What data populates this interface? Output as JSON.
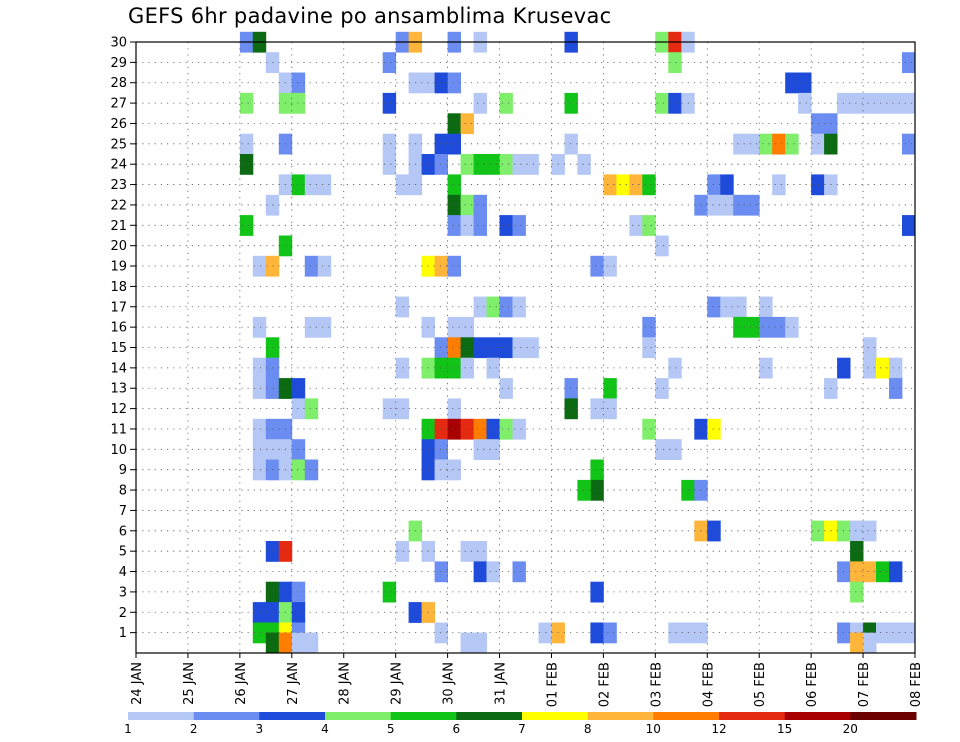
{
  "chart_data": {
    "type": "heatmap",
    "title": "GEFS 6hr padavine po ansamblima Krusevac",
    "xlabel": "",
    "ylabel": "",
    "x_tick_labels": [
      "24 JAN",
      "25 JAN",
      "26 JAN",
      "27 JAN",
      "28 JAN",
      "29 JAN",
      "30 JAN",
      "31 JAN",
      "01 FEB",
      "02 FEB",
      "03 FEB",
      "04 FEB",
      "05 FEB",
      "06 FEB",
      "07 FEB",
      "08 FEB"
    ],
    "xlim": [
      0,
      60
    ],
    "x_unit": "6-hour steps from 24 JAN 00Z",
    "y_tick_labels": [
      "1",
      "2",
      "3",
      "4",
      "5",
      "6",
      "7",
      "8",
      "9",
      "10",
      "11",
      "12",
      "13",
      "14",
      "15",
      "16",
      "17",
      "18",
      "19",
      "20",
      "21",
      "22",
      "23",
      "24",
      "25",
      "26",
      "27",
      "28",
      "29",
      "30"
    ],
    "ylim": [
      0,
      30
    ],
    "grid": true,
    "legend_labels": [
      "1",
      "2",
      "3",
      "4",
      "5",
      "6",
      "7",
      "8",
      "10",
      "12",
      "15",
      "20"
    ],
    "legend_colors": [
      "#b4c7f5",
      "#6b8cf0",
      "#1e4bd9",
      "#7fee6a",
      "#12c318",
      "#0b6a12",
      "#ffff00",
      "#ffb43a",
      "#ff7d00",
      "#e42a10",
      "#a80000",
      "#6b0000"
    ],
    "cells": [
      [
        30,
        8.5,
        1
      ],
      [
        30,
        9.5,
        5
      ],
      [
        30,
        20.5,
        1
      ],
      [
        30,
        21.5,
        7
      ],
      [
        30,
        24.5,
        1
      ],
      [
        30,
        26.5,
        0
      ],
      [
        30,
        33.5,
        2
      ],
      [
        30,
        40.5,
        3
      ],
      [
        30,
        41.5,
        9
      ],
      [
        30,
        42.5,
        0
      ],
      [
        29,
        10.5,
        0
      ],
      [
        29,
        19.5,
        1
      ],
      [
        29,
        41.5,
        3
      ],
      [
        29,
        59.5,
        1
      ],
      [
        28,
        11.5,
        0
      ],
      [
        28,
        12.5,
        1
      ],
      [
        28,
        21.5,
        0
      ],
      [
        28,
        22.5,
        0
      ],
      [
        28,
        23.5,
        2
      ],
      [
        28,
        24.5,
        1
      ],
      [
        28,
        50.5,
        2
      ],
      [
        28,
        51.5,
        2
      ],
      [
        27,
        8.5,
        3
      ],
      [
        27,
        11.5,
        3
      ],
      [
        27,
        12.5,
        3
      ],
      [
        27,
        19.5,
        2
      ],
      [
        27,
        26.5,
        0
      ],
      [
        27,
        28.5,
        3
      ],
      [
        27,
        33.5,
        4
      ],
      [
        27,
        40.5,
        3
      ],
      [
        27,
        41.5,
        2
      ],
      [
        27,
        42.5,
        0
      ],
      [
        27,
        51.5,
        0
      ],
      [
        27,
        54.5,
        0
      ],
      [
        27,
        55.5,
        0
      ],
      [
        27,
        56.5,
        0
      ],
      [
        27,
        57.5,
        0
      ],
      [
        27,
        58.5,
        0
      ],
      [
        27,
        59.5,
        0
      ],
      [
        26,
        24.5,
        5
      ],
      [
        26,
        25.5,
        7
      ],
      [
        26,
        52.5,
        1
      ],
      [
        26,
        53.5,
        1
      ],
      [
        25,
        8.5,
        0
      ],
      [
        25,
        11.5,
        1
      ],
      [
        25,
        19.5,
        0
      ],
      [
        25,
        21.5,
        0
      ],
      [
        25,
        23.5,
        2
      ],
      [
        25,
        24.5,
        2
      ],
      [
        25,
        33.5,
        0
      ],
      [
        25,
        46.5,
        0
      ],
      [
        25,
        47.5,
        0
      ],
      [
        25,
        48.5,
        3
      ],
      [
        25,
        49.5,
        8
      ],
      [
        25,
        50.5,
        3
      ],
      [
        25,
        52.5,
        0
      ],
      [
        25,
        53.5,
        5
      ],
      [
        25,
        59.5,
        1
      ],
      [
        24,
        8.5,
        5
      ],
      [
        24,
        19.5,
        0
      ],
      [
        24,
        21.5,
        0
      ],
      [
        24,
        22.5,
        2
      ],
      [
        24,
        23.5,
        1
      ],
      [
        24,
        25.5,
        3
      ],
      [
        24,
        26.5,
        4
      ],
      [
        24,
        27.5,
        4
      ],
      [
        24,
        28.5,
        3
      ],
      [
        24,
        29.5,
        0
      ],
      [
        24,
        30.5,
        0
      ],
      [
        24,
        32.5,
        0
      ],
      [
        24,
        34.5,
        0
      ],
      [
        23,
        11.5,
        0
      ],
      [
        23,
        12.5,
        4
      ],
      [
        23,
        13.5,
        0
      ],
      [
        23,
        14.5,
        0
      ],
      [
        23,
        20.5,
        0
      ],
      [
        23,
        21.5,
        0
      ],
      [
        23,
        24.5,
        4
      ],
      [
        23,
        36.5,
        7
      ],
      [
        23,
        37.5,
        6
      ],
      [
        23,
        38.5,
        7
      ],
      [
        23,
        39.5,
        4
      ],
      [
        23,
        44.5,
        1
      ],
      [
        23,
        45.5,
        2
      ],
      [
        23,
        49.5,
        0
      ],
      [
        23,
        52.5,
        2
      ],
      [
        23,
        53.5,
        0
      ],
      [
        22,
        10.5,
        0
      ],
      [
        22,
        24.5,
        5
      ],
      [
        22,
        25.5,
        3
      ],
      [
        22,
        26.5,
        1
      ],
      [
        22,
        43.5,
        1
      ],
      [
        22,
        44.5,
        0
      ],
      [
        22,
        45.5,
        0
      ],
      [
        22,
        46.5,
        1
      ],
      [
        22,
        47.5,
        1
      ],
      [
        21,
        8.5,
        4
      ],
      [
        21,
        24.5,
        1
      ],
      [
        21,
        25.5,
        0
      ],
      [
        21,
        26.5,
        1
      ],
      [
        21,
        28.5,
        2
      ],
      [
        21,
        29.5,
        1
      ],
      [
        21,
        38.5,
        0
      ],
      [
        21,
        39.5,
        3
      ],
      [
        21,
        59.5,
        2
      ],
      [
        20,
        11.5,
        4
      ],
      [
        20,
        40.5,
        0
      ],
      [
        19,
        9.5,
        0
      ],
      [
        19,
        10.5,
        7
      ],
      [
        19,
        13.5,
        1
      ],
      [
        19,
        14.5,
        0
      ],
      [
        19,
        22.5,
        6
      ],
      [
        19,
        23.5,
        7
      ],
      [
        19,
        24.5,
        1
      ],
      [
        19,
        35.5,
        1
      ],
      [
        19,
        36.5,
        0
      ],
      [
        17,
        20.5,
        0
      ],
      [
        17,
        26.5,
        0
      ],
      [
        17,
        27.5,
        3
      ],
      [
        17,
        28.5,
        1
      ],
      [
        17,
        29.5,
        0
      ],
      [
        17,
        44.5,
        1
      ],
      [
        17,
        45.5,
        0
      ],
      [
        17,
        46.5,
        0
      ],
      [
        17,
        48.5,
        0
      ],
      [
        16,
        9.5,
        0
      ],
      [
        16,
        13.5,
        0
      ],
      [
        16,
        14.5,
        0
      ],
      [
        16,
        22.5,
        0
      ],
      [
        16,
        24.5,
        0
      ],
      [
        16,
        25.5,
        0
      ],
      [
        16,
        39.5,
        1
      ],
      [
        16,
        46.5,
        4
      ],
      [
        16,
        47.5,
        4
      ],
      [
        16,
        48.5,
        1
      ],
      [
        16,
        49.5,
        1
      ],
      [
        16,
        50.5,
        0
      ],
      [
        15,
        10.5,
        4
      ],
      [
        15,
        23.5,
        1
      ],
      [
        15,
        24.5,
        8
      ],
      [
        15,
        25.5,
        5
      ],
      [
        15,
        26.5,
        2
      ],
      [
        15,
        27.5,
        2
      ],
      [
        15,
        28.5,
        2
      ],
      [
        15,
        29.5,
        0
      ],
      [
        15,
        30.5,
        0
      ],
      [
        15,
        39.5,
        0
      ],
      [
        15,
        56.5,
        0
      ],
      [
        14,
        9.5,
        0
      ],
      [
        14,
        10.5,
        1
      ],
      [
        14,
        20.5,
        0
      ],
      [
        14,
        22.5,
        3
      ],
      [
        14,
        23.5,
        4
      ],
      [
        14,
        24.5,
        4
      ],
      [
        14,
        25.5,
        0
      ],
      [
        14,
        27.5,
        0
      ],
      [
        14,
        41.5,
        0
      ],
      [
        14,
        48.5,
        0
      ],
      [
        14,
        54.5,
        2
      ],
      [
        14,
        56.5,
        0
      ],
      [
        14,
        57.5,
        6
      ],
      [
        14,
        58.5,
        0
      ],
      [
        13,
        9.5,
        0
      ],
      [
        13,
        10.5,
        1
      ],
      [
        13,
        11.5,
        5
      ],
      [
        13,
        12.5,
        2
      ],
      [
        13,
        28.5,
        0
      ],
      [
        13,
        33.5,
        1
      ],
      [
        13,
        36.5,
        4
      ],
      [
        13,
        40.5,
        0
      ],
      [
        13,
        53.5,
        0
      ],
      [
        13,
        58.5,
        1
      ],
      [
        12,
        12.5,
        0
      ],
      [
        12,
        13.5,
        3
      ],
      [
        12,
        19.5,
        0
      ],
      [
        12,
        20.5,
        0
      ],
      [
        12,
        24.5,
        0
      ],
      [
        12,
        33.5,
        5
      ],
      [
        12,
        35.5,
        0
      ],
      [
        12,
        36.5,
        0
      ],
      [
        11,
        9.5,
        0
      ],
      [
        11,
        10.5,
        1
      ],
      [
        11,
        11.5,
        1
      ],
      [
        11,
        22.5,
        4
      ],
      [
        11,
        23.5,
        9
      ],
      [
        11,
        24.5,
        10
      ],
      [
        11,
        25.5,
        9
      ],
      [
        11,
        26.5,
        8
      ],
      [
        11,
        27.5,
        2
      ],
      [
        11,
        28.5,
        3
      ],
      [
        11,
        29.5,
        0
      ],
      [
        11,
        39.5,
        3
      ],
      [
        11,
        43.5,
        2
      ],
      [
        11,
        44.5,
        6
      ],
      [
        10,
        9.5,
        0
      ],
      [
        10,
        10.5,
        0
      ],
      [
        10,
        11.5,
        0
      ],
      [
        10,
        12.5,
        1
      ],
      [
        10,
        22.5,
        2
      ],
      [
        10,
        23.5,
        1
      ],
      [
        10,
        26.5,
        0
      ],
      [
        10,
        27.5,
        0
      ],
      [
        10,
        40.5,
        0
      ],
      [
        10,
        41.5,
        0
      ],
      [
        9,
        9.5,
        0
      ],
      [
        9,
        10.5,
        1
      ],
      [
        9,
        11.5,
        0
      ],
      [
        9,
        12.5,
        3
      ],
      [
        9,
        13.5,
        1
      ],
      [
        9,
        22.5,
        2
      ],
      [
        9,
        23.5,
        0
      ],
      [
        9,
        24.5,
        0
      ],
      [
        9,
        35.5,
        4
      ],
      [
        8,
        35.5,
        5
      ],
      [
        8,
        34.5,
        4
      ],
      [
        8,
        42.5,
        4
      ],
      [
        8,
        43.5,
        1
      ],
      [
        6,
        21.5,
        3
      ],
      [
        6,
        43.5,
        7
      ],
      [
        6,
        44.5,
        2
      ],
      [
        6,
        52.5,
        3
      ],
      [
        6,
        53.5,
        6
      ],
      [
        6,
        54.5,
        3
      ],
      [
        6,
        55.5,
        0
      ],
      [
        6,
        56.5,
        0
      ],
      [
        5,
        10.5,
        2
      ],
      [
        5,
        11.5,
        9
      ],
      [
        5,
        20.5,
        0
      ],
      [
        5,
        22.5,
        0
      ],
      [
        5,
        25.5,
        0
      ],
      [
        5,
        26.5,
        0
      ],
      [
        5,
        55.5,
        5
      ],
      [
        4,
        23.5,
        1
      ],
      [
        4,
        26.5,
        2
      ],
      [
        4,
        27.5,
        0
      ],
      [
        4,
        29.5,
        1
      ],
      [
        4,
        54.5,
        1
      ],
      [
        4,
        55.5,
        7
      ],
      [
        4,
        56.5,
        7
      ],
      [
        4,
        57.5,
        4
      ],
      [
        4,
        58.5,
        2
      ],
      [
        3,
        10.5,
        5
      ],
      [
        3,
        11.5,
        2
      ],
      [
        3,
        12.5,
        1
      ],
      [
        3,
        19.5,
        4
      ],
      [
        3,
        35.5,
        2
      ],
      [
        3,
        55.5,
        3
      ],
      [
        2,
        9.5,
        2
      ],
      [
        2,
        10.5,
        2
      ],
      [
        2,
        11.5,
        3
      ],
      [
        2,
        12.5,
        2
      ],
      [
        2,
        21.5,
        2
      ],
      [
        2,
        22.5,
        7
      ],
      [
        1,
        9.5,
        4
      ],
      [
        1,
        10.5,
        4
      ],
      [
        1,
        11.5,
        6
      ],
      [
        1,
        12.5,
        1
      ],
      [
        1,
        23.5,
        0
      ],
      [
        1,
        31.5,
        0
      ],
      [
        1,
        32.5,
        7
      ],
      [
        1,
        35.5,
        2
      ],
      [
        1,
        36.5,
        1
      ],
      [
        1,
        41.5,
        0
      ],
      [
        1,
        42.5,
        0
      ],
      [
        1,
        43.5,
        0
      ],
      [
        1,
        54.5,
        1
      ],
      [
        1,
        55.5,
        0
      ],
      [
        1,
        56.5,
        5
      ],
      [
        1,
        57.5,
        0
      ],
      [
        1,
        58.5,
        0
      ],
      [
        1,
        59.5,
        0
      ],
      [
        0.5,
        10.5,
        5
      ],
      [
        0.5,
        11.5,
        8
      ],
      [
        0.5,
        12.5,
        0
      ],
      [
        0.5,
        13.5,
        0
      ],
      [
        0.5,
        25.5,
        0
      ],
      [
        0.5,
        26.5,
        0
      ],
      [
        0.5,
        55.5,
        7
      ],
      [
        0.5,
        56.5,
        0
      ]
    ]
  }
}
